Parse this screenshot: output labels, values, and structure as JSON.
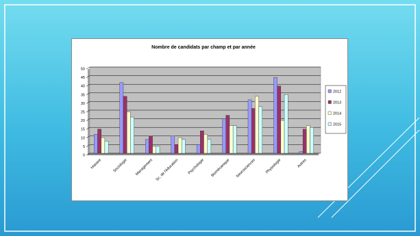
{
  "chart_data": {
    "type": "bar",
    "title": "Nombre de candidats par champ et par année",
    "xlabel": "",
    "ylabel": "",
    "ylim": [
      0,
      50
    ],
    "yticks": [
      0,
      5,
      10,
      15,
      20,
      25,
      30,
      35,
      40,
      45,
      50
    ],
    "grid": true,
    "legend_position": "right",
    "categories": [
      "Histoire",
      "Sociologie",
      "Management",
      "Sc. de l'éducation",
      "Psychologie",
      "Biomécanique",
      "Neurosciences",
      "Physiologie",
      "Autres"
    ],
    "series": [
      {
        "name": "2012",
        "color": "#9999ff",
        "values": [
          11,
          41,
          8,
          10,
          5,
          20,
          31,
          44,
          1
        ]
      },
      {
        "name": "2013",
        "color": "#993366",
        "values": [
          14,
          33,
          10,
          5,
          13,
          22,
          26,
          39,
          14
        ]
      },
      {
        "name": "2014",
        "color": "#ffffcc",
        "values": [
          9,
          24,
          4,
          9,
          11,
          16,
          33,
          19,
          16
        ]
      },
      {
        "name": "2015",
        "color": "#ccffff",
        "values": [
          7,
          21,
          4,
          8,
          8,
          16,
          27,
          34,
          15
        ]
      }
    ],
    "plot_background": "#c0c0c0"
  }
}
